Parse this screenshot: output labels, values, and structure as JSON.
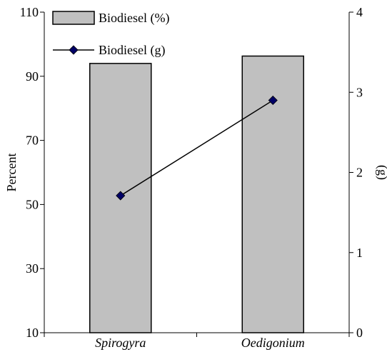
{
  "chart_data": {
    "type": "bar+line",
    "categories": [
      "Spirogyra",
      "Oedigonium"
    ],
    "series": [
      {
        "name": "Biodiesel (%)",
        "type": "bar",
        "axis": "left",
        "values": [
          94,
          96.3
        ],
        "color": "#c0c0c0"
      },
      {
        "name": "Biodiesel (g)",
        "type": "line",
        "axis": "right",
        "values": [
          1.71,
          2.9
        ],
        "color": "#000000",
        "marker": "diamond",
        "marker_color": "#000066"
      }
    ],
    "left_axis": {
      "label": "Percent",
      "ylim": [
        10,
        110
      ],
      "ticks": [
        10,
        30,
        50,
        70,
        90,
        110
      ]
    },
    "right_axis": {
      "label": "(g)",
      "ylim": [
        0,
        4
      ],
      "ticks": [
        0,
        1,
        2,
        3,
        4
      ]
    },
    "legend": {
      "placement": "top-left"
    },
    "grid": false
  }
}
